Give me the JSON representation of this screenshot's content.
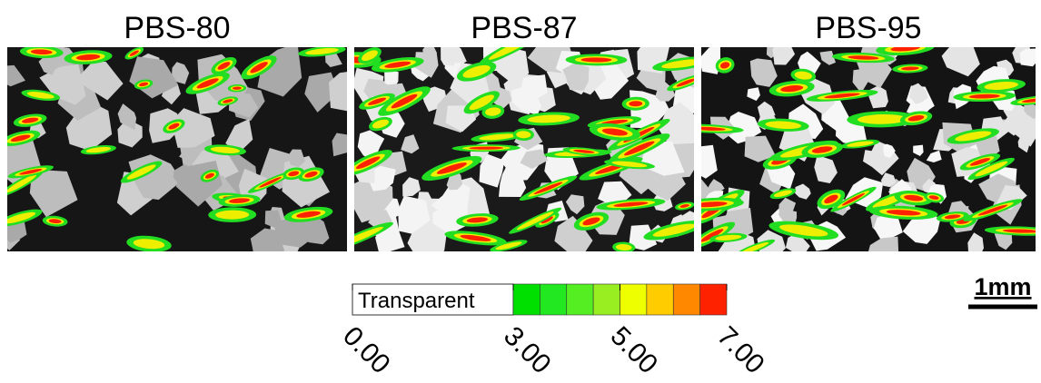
{
  "panels": [
    {
      "title": "PBS-80"
    },
    {
      "title": "PBS-87"
    },
    {
      "title": "PBS-95"
    }
  ],
  "colorbar": {
    "label": "Transparent",
    "ticks": [
      {
        "value": 0,
        "label": "0.00"
      },
      {
        "value": 3,
        "label": "3.00"
      },
      {
        "value": 5,
        "label": "5.00"
      },
      {
        "value": 7,
        "label": "7.00"
      }
    ],
    "colors": [
      "#00e000",
      "#22e822",
      "#55ee22",
      "#99ee22",
      "#eeff00",
      "#ffcc00",
      "#ff8800",
      "#ff2200"
    ]
  },
  "scale_bar": {
    "label": "1mm"
  }
}
